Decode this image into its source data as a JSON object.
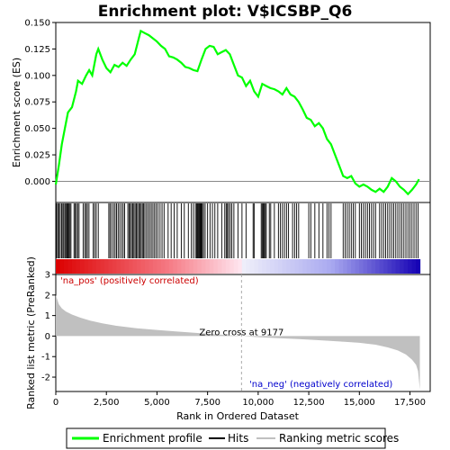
{
  "chart_data": {
    "type": "line",
    "title": "Enrichment plot: V$ICSBP_Q6",
    "es_panel": {
      "ylabel": "Enrichment score (ES)",
      "ylim": [
        -0.02,
        0.15
      ],
      "yticks": [
        "0.150",
        "0.125",
        "0.100",
        "0.075",
        "0.050",
        "0.025",
        "0.000"
      ],
      "ytick_values": [
        0.15,
        0.125,
        0.1,
        0.075,
        0.05,
        0.025,
        0.0
      ],
      "series": [
        {
          "name": "Enrichment profile",
          "color": "#00ff00",
          "x": [
            0,
            150,
            300,
            450,
            600,
            800,
            1000,
            1100,
            1300,
            1500,
            1650,
            1800,
            2000,
            2100,
            2300,
            2500,
            2700,
            2900,
            3100,
            3300,
            3500,
            3700,
            3900,
            4100,
            4200,
            4400,
            4600,
            4800,
            5000,
            5200,
            5400,
            5600,
            5800,
            6000,
            6200,
            6400,
            6600,
            6800,
            7000,
            7200,
            7400,
            7600,
            7800,
            8000,
            8200,
            8400,
            8600,
            8800,
            9000,
            9200,
            9400,
            9600,
            9800,
            10000,
            10200,
            10400,
            10600,
            10800,
            11000,
            11200,
            11400,
            11600,
            11800,
            12000,
            12200,
            12400,
            12600,
            12800,
            13000,
            13200,
            13400,
            13600,
            13800,
            14000,
            14200,
            14400,
            14600,
            14800,
            15000,
            15200,
            15400,
            15600,
            15800,
            16000,
            16200,
            16400,
            16600,
            16800,
            17000,
            17200,
            17400,
            17600,
            17800,
            17950
          ],
          "y": [
            -0.003,
            0.015,
            0.035,
            0.05,
            0.065,
            0.07,
            0.085,
            0.095,
            0.092,
            0.1,
            0.105,
            0.1,
            0.12,
            0.125,
            0.115,
            0.107,
            0.103,
            0.11,
            0.108,
            0.112,
            0.109,
            0.115,
            0.12,
            0.135,
            0.142,
            0.14,
            0.138,
            0.135,
            0.132,
            0.128,
            0.125,
            0.118,
            0.117,
            0.115,
            0.112,
            0.108,
            0.107,
            0.105,
            0.104,
            0.115,
            0.125,
            0.128,
            0.127,
            0.12,
            0.122,
            0.124,
            0.12,
            0.11,
            0.1,
            0.098,
            0.09,
            0.095,
            0.085,
            0.08,
            0.092,
            0.09,
            0.088,
            0.087,
            0.085,
            0.082,
            0.088,
            0.082,
            0.08,
            0.075,
            0.068,
            0.06,
            0.058,
            0.052,
            0.055,
            0.05,
            0.04,
            0.035,
            0.025,
            0.015,
            0.005,
            0.003,
            0.005,
            -0.002,
            -0.005,
            -0.003,
            -0.005,
            -0.008,
            -0.01,
            -0.007,
            -0.01,
            -0.005,
            0.003,
            0.0,
            -0.005,
            -0.008,
            -0.012,
            -0.008,
            -0.003,
            0.002
          ]
        }
      ]
    },
    "hits": {
      "name": "Hits",
      "color": "#000000",
      "positions": [
        40,
        100,
        160,
        220,
        290,
        350,
        400,
        460,
        520,
        560,
        600,
        650,
        700,
        750,
        900,
        960,
        1020,
        1080,
        1150,
        1350,
        1430,
        1500,
        1560,
        1640,
        1850,
        1920,
        2000,
        2100,
        2620,
        2680,
        2760,
        2850,
        2930,
        3000,
        3080,
        3160,
        3250,
        3330,
        3400,
        3560,
        3620,
        3680,
        3740,
        3800,
        3860,
        3920,
        3980,
        4040,
        4100,
        4160,
        4220,
        4280,
        4340,
        4400,
        4480,
        4560,
        4640,
        4720,
        4800,
        4880,
        4960,
        5050,
        5150,
        5250,
        5350,
        5550,
        5700,
        5850,
        6000,
        6200,
        6350,
        6550,
        6700,
        6800,
        6900,
        6960,
        7000,
        7040,
        7080,
        7120,
        7160,
        7200,
        7240,
        7300,
        7380,
        7500,
        7620,
        7740,
        7860,
        8000,
        8200,
        8350,
        8420,
        8480,
        8540,
        8620,
        8700,
        8800,
        9000,
        9200,
        9400,
        9750,
        9800,
        10150,
        10200,
        10250,
        10300,
        10350,
        10400,
        10550,
        10620,
        10800,
        11000,
        11100,
        11200,
        11300,
        11400,
        11500,
        11700,
        11800,
        11900,
        12000,
        12500,
        12600,
        12800,
        13000,
        13200,
        13400,
        13500,
        13600,
        14200,
        14300,
        14400,
        14500,
        14600,
        14700,
        14800,
        15000,
        15100,
        15200,
        15300,
        15400,
        15500,
        15600,
        15700,
        15800,
        16000,
        16100,
        16200,
        16300,
        16400,
        16500,
        16600,
        16700,
        16800,
        16900,
        17000,
        17100,
        17200,
        17300,
        17400,
        17500,
        17600,
        17700,
        17800,
        17900
      ]
    },
    "metric_panel": {
      "ylabel": "Ranked list metric (PreRanked)",
      "ylim": [
        -2.7,
        3.0
      ],
      "yticks": [
        "3",
        "2",
        "1",
        "0",
        "-1",
        "-2"
      ],
      "ytick_values": [
        3,
        2,
        1,
        0,
        -1,
        -2
      ],
      "series_name": "Ranking metric scores",
      "color": "#c0c0c0",
      "x": [
        0,
        50,
        150,
        300,
        500,
        800,
        1200,
        1700,
        2300,
        3000,
        4000,
        5000,
        6000,
        7000,
        8000,
        9177,
        10000,
        11000,
        12000,
        13000,
        14000,
        15000,
        15800,
        16400,
        16900,
        17300,
        17600,
        17800,
        17900,
        17990
      ],
      "y": [
        2.0,
        1.85,
        1.55,
        1.35,
        1.2,
        1.05,
        0.9,
        0.75,
        0.62,
        0.5,
        0.38,
        0.3,
        0.22,
        0.15,
        0.08,
        0.0,
        -0.05,
        -0.1,
        -0.15,
        -0.2,
        -0.26,
        -0.33,
        -0.42,
        -0.55,
        -0.7,
        -0.9,
        -1.15,
        -1.4,
        -1.7,
        -2.6
      ]
    },
    "xaxis": {
      "label": "Rank in Ordered Dataset",
      "xlim": [
        0,
        18500
      ],
      "ticks": [
        "0",
        "2,500",
        "5,000",
        "7,500",
        "10,000",
        "12,500",
        "15,000",
        "17,500"
      ],
      "tick_values": [
        0,
        2500,
        5000,
        7500,
        10000,
        12500,
        15000,
        17500
      ]
    },
    "annotations": {
      "pos_label": "'na_pos' (positively correlated)",
      "pos_color": "#cc0000",
      "neg_label": "'na_neg' (negatively correlated)",
      "neg_color": "#0000cc",
      "zero_cross": "Zero cross at 9177",
      "zero_cross_value": 9177
    },
    "legend": {
      "placement": "bottom",
      "items": [
        {
          "label": "Enrichment profile",
          "color": "#00ff00"
        },
        {
          "label": "Hits",
          "color": "#000000"
        },
        {
          "label": "Ranking metric scores",
          "color": "#c0c0c0"
        }
      ]
    }
  }
}
